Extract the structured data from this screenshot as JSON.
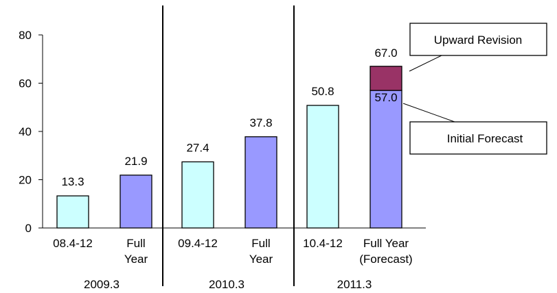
{
  "chart_data": {
    "type": "bar",
    "title": "",
    "xlabel": "",
    "ylabel": "",
    "ylim": [
      0,
      80
    ],
    "yticks": [
      0,
      20,
      40,
      60,
      80
    ],
    "grid": false,
    "categories": [
      {
        "label": [
          "08.4-12"
        ],
        "group": "2009.3",
        "value": 13.3,
        "value_label": "13.3",
        "color": "#ccffff"
      },
      {
        "label": [
          "Full",
          "Year"
        ],
        "group": "2009.3",
        "value": 21.9,
        "value_label": "21.9",
        "color": "#9999ff"
      },
      {
        "label": [
          "09.4-12"
        ],
        "group": "2010.3",
        "value": 27.4,
        "value_label": "27.4",
        "color": "#ccffff"
      },
      {
        "label": [
          "Full",
          "Year"
        ],
        "group": "2010.3",
        "value": 37.8,
        "value_label": "37.8",
        "color": "#9999ff"
      },
      {
        "label": [
          "10.4-12"
        ],
        "group": "2011.3",
        "value": 50.8,
        "value_label": "50.8",
        "color": "#ccffff"
      },
      {
        "label": [
          "Full Year",
          "(Forecast)"
        ],
        "group": "2011.3",
        "value": 57.0,
        "value_label": "57.0",
        "color": "#9999ff",
        "stack_top": 67.0,
        "stack_top_label": "67.0",
        "stack_color": "#993366"
      }
    ],
    "groups": [
      "2009.3",
      "2010.3",
      "2011.3"
    ],
    "annotations": [
      {
        "text": "Upward Revision",
        "points_to": "upper stacked segment of Full Year (Forecast)"
      },
      {
        "text": "Initial Forecast",
        "points_to": "lower segment of Full Year (Forecast)"
      }
    ]
  }
}
